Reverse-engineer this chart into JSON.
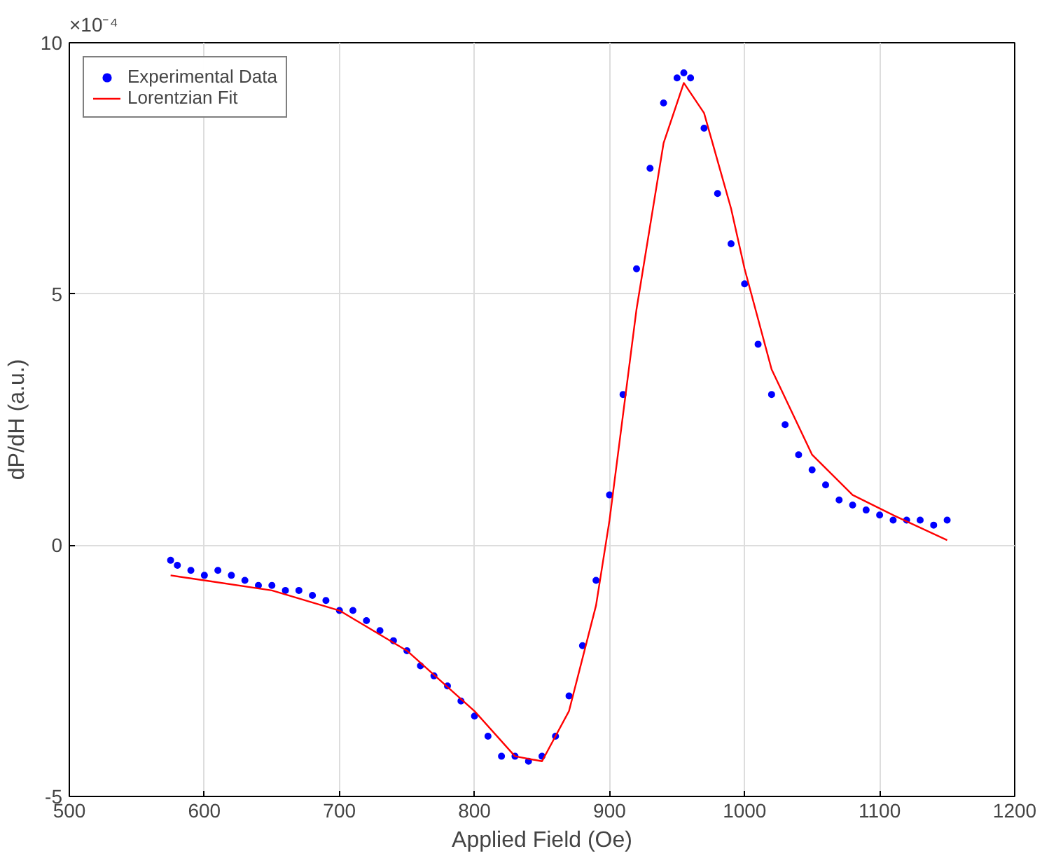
{
  "chart_data": {
    "type": "scatter",
    "xlabel": "Applied Field (Oe)",
    "ylabel": "dP/dH (a.u.)",
    "annotations": [
      "×10⁻⁴"
    ],
    "xlim": [
      500,
      1200
    ],
    "xticks": [
      500,
      600,
      700,
      800,
      900,
      1000,
      1100,
      1200
    ],
    "ylim": [
      -5,
      10
    ],
    "yticks": [
      -5,
      0,
      5,
      10
    ],
    "grid": true,
    "legend": "top left",
    "marker": "circle",
    "series": [
      {
        "name": "Experimental Data",
        "color": "#0000ff",
        "x": [
          575,
          580,
          590,
          600,
          610,
          620,
          630,
          640,
          650,
          660,
          670,
          680,
          690,
          700,
          710,
          720,
          730,
          740,
          750,
          760,
          770,
          780,
          790,
          800,
          810,
          820,
          830,
          840,
          850,
          860,
          870,
          880,
          890,
          900,
          910,
          920,
          930,
          940,
          950,
          955,
          960,
          970,
          980,
          990,
          1000,
          1010,
          1020,
          1030,
          1040,
          1050,
          1060,
          1070,
          1080,
          1090,
          1100,
          1110,
          1120,
          1130,
          1140,
          1150
        ],
        "values": [
          -0.3,
          -0.4,
          -0.5,
          -0.6,
          -0.5,
          -0.6,
          -0.7,
          -0.8,
          -0.8,
          -0.9,
          -0.9,
          -1.0,
          -1.1,
          -1.3,
          -1.3,
          -1.5,
          -1.7,
          -1.9,
          -2.1,
          -2.4,
          -2.6,
          -2.8,
          -3.1,
          -3.4,
          -3.8,
          -4.2,
          -4.2,
          -4.3,
          -4.2,
          -3.8,
          -3.0,
          -2.0,
          -0.7,
          1.0,
          3.0,
          5.5,
          7.5,
          8.8,
          9.3,
          9.4,
          9.3,
          8.3,
          7.0,
          6.0,
          5.2,
          4.0,
          3.0,
          2.4,
          1.8,
          1.5,
          1.2,
          0.9,
          0.8,
          0.7,
          0.6,
          0.5,
          0.5,
          0.5,
          0.4,
          0.5
        ]
      },
      {
        "name": "Lorentzian Fit",
        "type": "line",
        "color": "#ff0000",
        "marker": "none",
        "line_style": "solid",
        "x": [
          575,
          600,
          650,
          700,
          750,
          800,
          830,
          850,
          870,
          890,
          900,
          920,
          940,
          955,
          970,
          990,
          1000,
          1020,
          1050,
          1080,
          1110,
          1150
        ],
        "values": [
          -0.6,
          -0.7,
          -0.9,
          -1.3,
          -2.1,
          -3.3,
          -4.2,
          -4.3,
          -3.3,
          -1.2,
          0.5,
          4.7,
          8.0,
          9.2,
          8.6,
          6.7,
          5.5,
          3.5,
          1.8,
          1.0,
          0.6,
          0.1
        ]
      }
    ]
  }
}
